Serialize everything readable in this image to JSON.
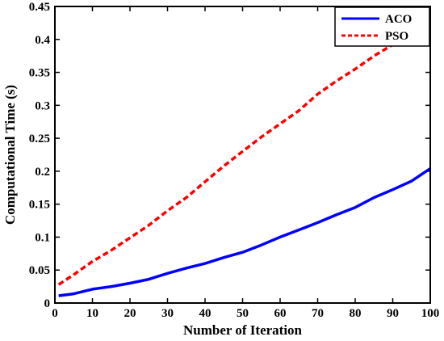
{
  "chart_data": {
    "type": "line",
    "title": "",
    "xlabel": "Number of Iteration",
    "ylabel": "Computational Time (s)",
    "xlim": [
      0,
      100
    ],
    "ylim": [
      0,
      0.45
    ],
    "xticks": [
      0,
      10,
      20,
      30,
      40,
      50,
      60,
      70,
      80,
      90,
      100
    ],
    "yticks": [
      0,
      0.05,
      0.1,
      0.15,
      0.2,
      0.25,
      0.3,
      0.35,
      0.4,
      0.45
    ],
    "xtick_labels": [
      "0",
      "10",
      "20",
      "30",
      "40",
      "50",
      "60",
      "70",
      "80",
      "90",
      "100"
    ],
    "ytick_labels": [
      "0",
      "0.05",
      "0.1",
      "0.15",
      "0.2",
      "0.25",
      "0.3",
      "0.35",
      "0.4",
      "0.45"
    ],
    "grid": false,
    "legend_position": "top-right",
    "series": [
      {
        "name": "ACO",
        "color": "#0000ff",
        "line_style": "solid",
        "x": [
          1,
          5,
          10,
          15,
          20,
          25,
          30,
          35,
          40,
          45,
          50,
          55,
          60,
          65,
          70,
          75,
          80,
          85,
          90,
          95,
          100
        ],
        "y": [
          0.011,
          0.014,
          0.021,
          0.025,
          0.03,
          0.036,
          0.045,
          0.053,
          0.06,
          0.069,
          0.077,
          0.088,
          0.1,
          0.111,
          0.122,
          0.134,
          0.145,
          0.16,
          0.172,
          0.185,
          0.204
        ]
      },
      {
        "name": "PSO",
        "color": "#ff0000",
        "line_style": "dashed",
        "x": [
          1,
          5,
          10,
          15,
          20,
          25,
          30,
          35,
          40,
          45,
          50,
          55,
          60,
          65,
          70,
          75,
          80,
          85,
          90,
          95
        ],
        "y": [
          0.028,
          0.043,
          0.063,
          0.08,
          0.099,
          0.118,
          0.14,
          0.16,
          0.184,
          0.208,
          0.23,
          0.252,
          0.272,
          0.292,
          0.317,
          0.337,
          0.355,
          0.375,
          0.392,
          0.411
        ]
      }
    ]
  }
}
